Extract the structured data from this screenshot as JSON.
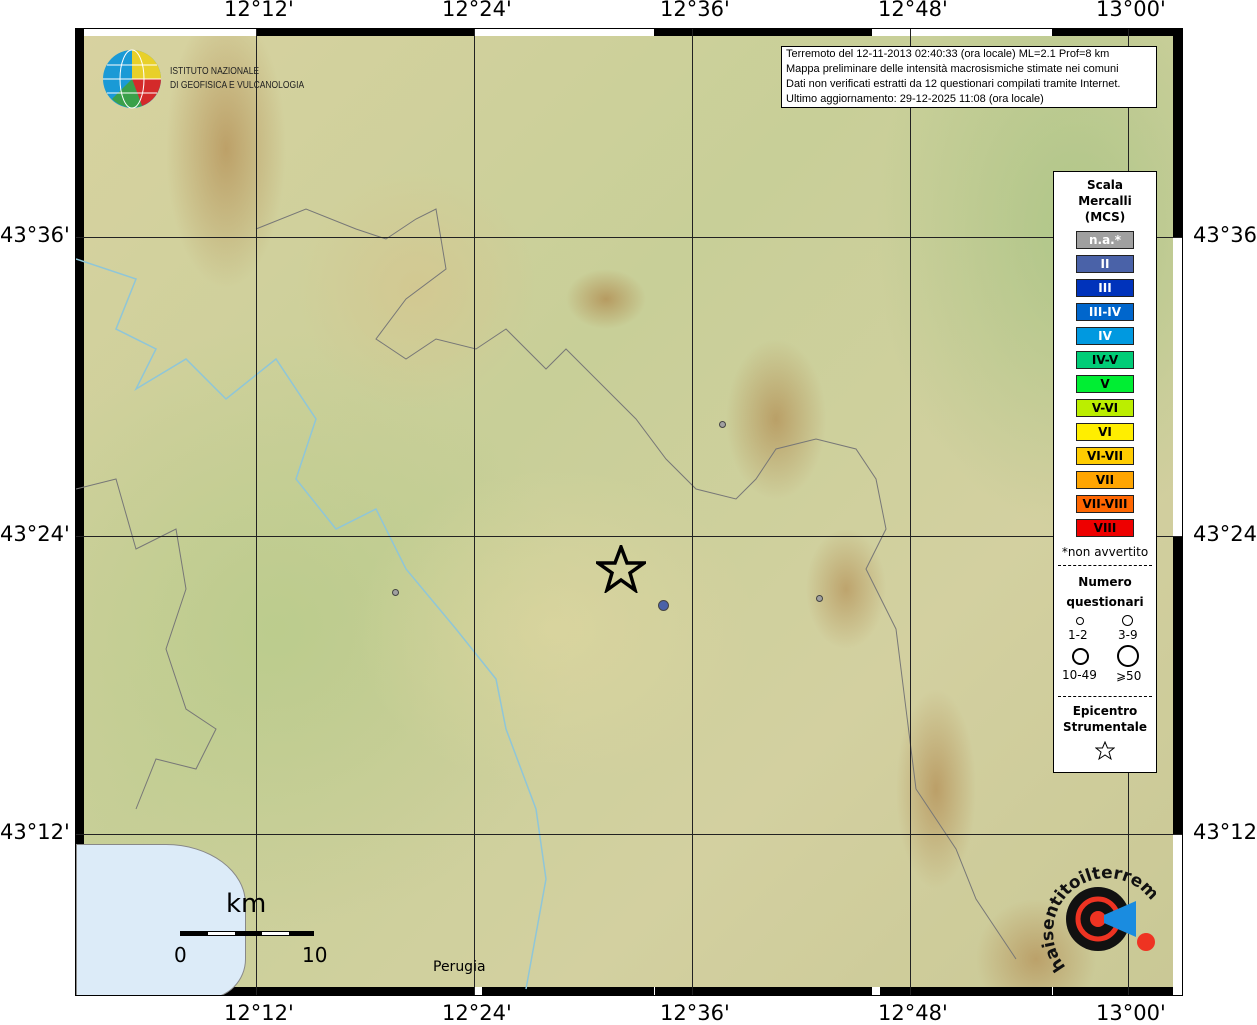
{
  "axes": {
    "top": [
      "12°12'",
      "12°24'",
      "12°36'",
      "12°48'",
      "13°00'"
    ],
    "bottom": [
      "12°12'",
      "12°24'",
      "12°36'",
      "12°48'",
      "13°00'"
    ],
    "left": [
      "43°36'",
      "43°24'",
      "43°12'"
    ],
    "right": [
      "43°36'",
      "43°24'",
      "43°12'"
    ]
  },
  "logo": {
    "line1": "ISTITUTO NAZIONALE",
    "line2": "DI GEOFISICA E VULCANOLOGIA"
  },
  "info": [
    "Terremoto del 12-11-2013 02:40:33 (ora locale) ML=2.1 Prof=8 km",
    "Mappa preliminare delle intensità macrosismiche stimate nei comuni",
    "Dati non verificati estratti da 12 questionari compilati tramite Internet.",
    "Ultimo aggiornamento: 29-12-2025 11:08 (ora locale)"
  ],
  "legend": {
    "title": [
      "Scala",
      "Mercalli",
      "(MCS)"
    ],
    "scale": [
      {
        "label": "n.a.*",
        "color": "#a0a0a0"
      },
      {
        "label": "II",
        "color": "#4a62a8"
      },
      {
        "label": "III",
        "color": "#0033bb"
      },
      {
        "label": "III-IV",
        "color": "#0066cc"
      },
      {
        "label": "IV",
        "color": "#0099e0"
      },
      {
        "label": "IV-V",
        "color": "#00cc77",
        "dark": true
      },
      {
        "label": "V",
        "color": "#00ee33",
        "dark": true
      },
      {
        "label": "V-VI",
        "color": "#bbee00",
        "dark": true
      },
      {
        "label": "VI",
        "color": "#ffee00",
        "dark": true
      },
      {
        "label": "VI-VII",
        "color": "#ffcc00",
        "dark": true
      },
      {
        "label": "VII",
        "color": "#ffa500",
        "dark": true
      },
      {
        "label": "VII-VIII",
        "color": "#ff6600",
        "dark": true
      },
      {
        "label": "VIII",
        "color": "#ee0000",
        "dark": true
      }
    ],
    "note": "*non avvertito",
    "count_title": [
      "Numero",
      "questionari"
    ],
    "count_sizes": [
      "1-2",
      "3-9",
      "10-49",
      "⩾50"
    ],
    "epi_title": [
      "Epicentro",
      "Strumentale"
    ]
  },
  "scalebar": {
    "unit": "km",
    "min": "0",
    "max": "10"
  },
  "places": {
    "perugia": "Perugia"
  },
  "badge": {
    "text": "haisentitoilterremoto.it",
    "url": "www."
  }
}
